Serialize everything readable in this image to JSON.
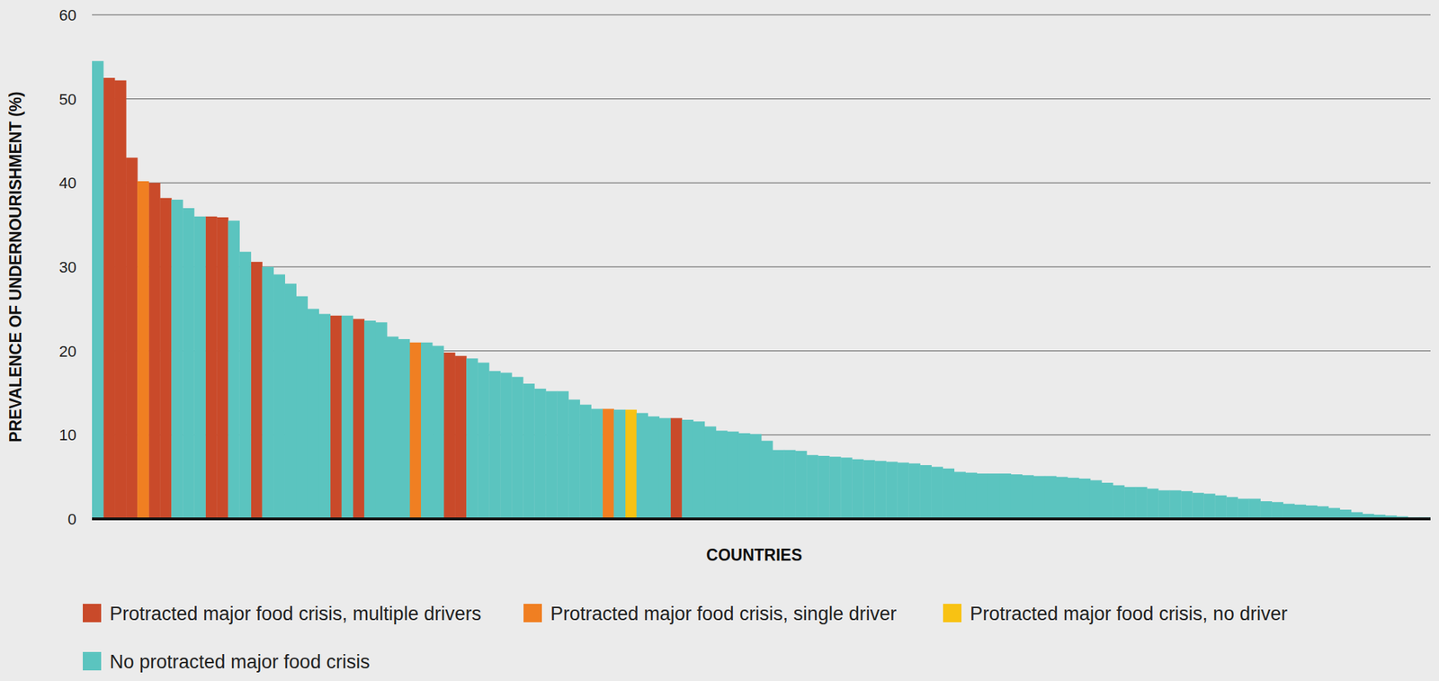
{
  "chart_data": {
    "type": "bar",
    "x_label": "COUNTRIES",
    "y_label": "PREVALENCE OF UNDERNOURISHMENT (%)",
    "ylim": [
      0,
      60
    ],
    "yticks": [
      0,
      10,
      20,
      30,
      40,
      50,
      60
    ],
    "grid": true,
    "stacked": true,
    "legend": "bottom",
    "tick_labels": "y",
    "categories": [
      null,
      null,
      null,
      null,
      null,
      null,
      null,
      null,
      null,
      null,
      null,
      null,
      null,
      null,
      null,
      null,
      null,
      null,
      null,
      null,
      null,
      null,
      null,
      null,
      null,
      null,
      null,
      null,
      null,
      null,
      null,
      null,
      null,
      null,
      null,
      null,
      null,
      null,
      null,
      null,
      null,
      null,
      null,
      null,
      null,
      null,
      null,
      null,
      null,
      null,
      null,
      null,
      null,
      null,
      null,
      null,
      null,
      null,
      null,
      null,
      null,
      null,
      null,
      null,
      null,
      null,
      null,
      null,
      null,
      null,
      null,
      null,
      null,
      null,
      null,
      null,
      null,
      null,
      null,
      null,
      null,
      null,
      null,
      null,
      null,
      null,
      null,
      null,
      null,
      null,
      null,
      null,
      null,
      null,
      null,
      null,
      null,
      null,
      null,
      null,
      null,
      null,
      null,
      null,
      null,
      null,
      null,
      null,
      null,
      null,
      null,
      null,
      null,
      null,
      null,
      null,
      null,
      null
    ],
    "series": [
      {
        "name": "Protracted major food crisis, multiple drivers",
        "color": "#c94a2a",
        "values": [
          null,
          52.5,
          52.2,
          43.0,
          null,
          40.0,
          38.2,
          null,
          null,
          null,
          36.0,
          35.9,
          null,
          null,
          30.6,
          null,
          null,
          null,
          null,
          null,
          null,
          24.2,
          null,
          23.8,
          null,
          null,
          null,
          null,
          null,
          null,
          null,
          19.8,
          19.4,
          null,
          null,
          null,
          null,
          null,
          null,
          null,
          null,
          null,
          null,
          null,
          null,
          null,
          null,
          null,
          null,
          null,
          null,
          12.0,
          null,
          null,
          null,
          null,
          null,
          null,
          null,
          null,
          null,
          null,
          null,
          null,
          null,
          null,
          null,
          null,
          null,
          null,
          null,
          null,
          null,
          null,
          null,
          null,
          null,
          null,
          null,
          null,
          null,
          null,
          null,
          null,
          null,
          null,
          null,
          null,
          null,
          null,
          null,
          null,
          null,
          null,
          null,
          null,
          null,
          null,
          null,
          null,
          null,
          null,
          null,
          null,
          null,
          null,
          null,
          null,
          null,
          null,
          null,
          null,
          null,
          null,
          null,
          null,
          null,
          null
        ]
      },
      {
        "name": "Protracted major food crisis, single driver",
        "color": "#f07f22",
        "values": [
          null,
          null,
          null,
          null,
          40.2,
          null,
          null,
          null,
          null,
          null,
          null,
          null,
          null,
          null,
          null,
          null,
          null,
          null,
          null,
          null,
          null,
          null,
          null,
          null,
          null,
          null,
          null,
          null,
          21.0,
          null,
          null,
          null,
          null,
          null,
          null,
          null,
          null,
          null,
          null,
          null,
          null,
          null,
          null,
          null,
          null,
          13.1,
          null,
          null,
          null,
          null,
          null,
          null,
          null,
          null,
          null,
          null,
          null,
          null,
          null,
          null,
          null,
          null,
          null,
          null,
          null,
          null,
          null,
          null,
          null,
          null,
          null,
          null,
          null,
          null,
          null,
          null,
          null,
          null,
          null,
          null,
          null,
          null,
          null,
          null,
          null,
          null,
          null,
          null,
          null,
          null,
          null,
          null,
          null,
          null,
          null,
          null,
          null,
          null,
          null,
          null,
          null,
          null,
          null,
          null,
          null,
          null,
          null,
          null,
          null,
          null,
          null,
          null,
          null,
          null,
          null,
          null,
          null,
          null
        ]
      },
      {
        "name": "Protracted major food crisis, no driver",
        "color": "#f8c213",
        "values": [
          null,
          null,
          null,
          null,
          null,
          null,
          null,
          null,
          null,
          null,
          null,
          null,
          null,
          null,
          null,
          null,
          null,
          null,
          null,
          null,
          null,
          null,
          null,
          null,
          null,
          null,
          null,
          null,
          null,
          null,
          null,
          null,
          null,
          null,
          null,
          null,
          null,
          null,
          null,
          null,
          null,
          null,
          null,
          null,
          null,
          null,
          null,
          13.0,
          null,
          null,
          null,
          null,
          null,
          null,
          null,
          null,
          null,
          null,
          null,
          null,
          null,
          null,
          null,
          null,
          null,
          null,
          null,
          null,
          null,
          null,
          null,
          null,
          null,
          null,
          null,
          null,
          null,
          null,
          null,
          null,
          null,
          null,
          null,
          null,
          null,
          null,
          null,
          null,
          null,
          null,
          null,
          null,
          null,
          null,
          null,
          null,
          null,
          null,
          null,
          null,
          null,
          null,
          null,
          null,
          null,
          null,
          null,
          null,
          null,
          null,
          null,
          null,
          null,
          null,
          null,
          null,
          null,
          null
        ]
      },
      {
        "name": "No protracted major food crisis",
        "color": "#5bc4bf",
        "values": [
          54.5,
          null,
          null,
          null,
          null,
          null,
          null,
          38.0,
          37.0,
          36.0,
          null,
          null,
          35.5,
          31.8,
          null,
          30.0,
          29.1,
          28.0,
          26.5,
          25.0,
          24.4,
          null,
          24.2,
          null,
          23.6,
          23.4,
          21.7,
          21.4,
          null,
          21.0,
          20.6,
          null,
          null,
          19.1,
          18.6,
          17.6,
          17.4,
          16.9,
          16.1,
          15.5,
          15.2,
          15.2,
          14.2,
          13.6,
          13.1,
          null,
          13.0,
          null,
          12.6,
          12.2,
          12.0,
          null,
          11.8,
          11.6,
          11.0,
          10.5,
          10.4,
          10.2,
          10.1,
          9.3,
          8.2,
          8.2,
          8.1,
          7.6,
          7.5,
          7.4,
          7.3,
          7.1,
          7.0,
          6.9,
          6.8,
          6.7,
          6.6,
          6.4,
          6.2,
          6.0,
          5.6,
          5.5,
          5.4,
          5.4,
          5.4,
          5.3,
          5.2,
          5.1,
          5.1,
          5.0,
          4.9,
          4.8,
          4.6,
          4.3,
          4.0,
          3.8,
          3.8,
          3.6,
          3.4,
          3.4,
          3.3,
          3.1,
          3.0,
          2.8,
          2.6,
          2.4,
          2.4,
          2.1,
          2.0,
          1.8,
          1.7,
          1.6,
          1.5,
          1.3,
          1.1,
          0.8,
          0.6,
          0.5,
          0.4,
          0.3,
          0.2,
          0.2
        ]
      }
    ]
  }
}
